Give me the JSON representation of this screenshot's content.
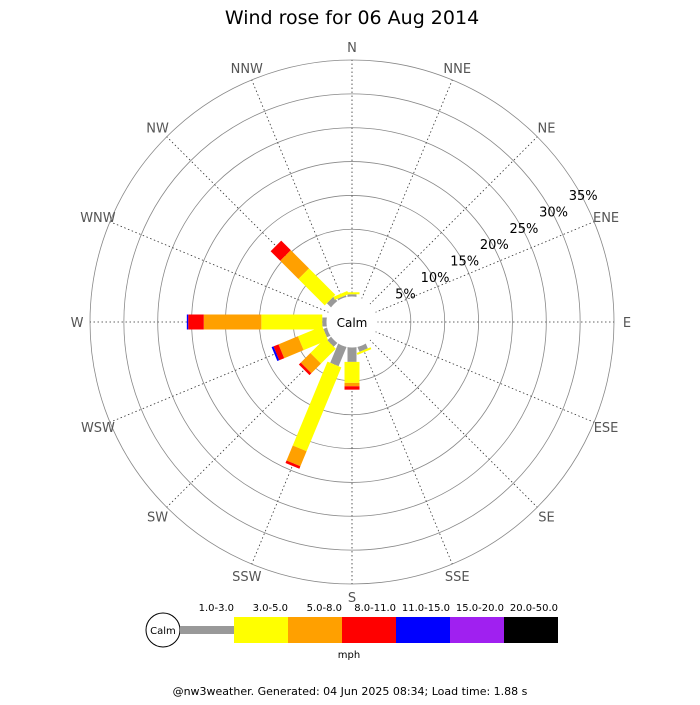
{
  "title": "Wind rose for 06 Aug 2014",
  "footer": "@nw3weather. Generated: 04 Jun 2025 08:34; Load time: 1.88 s",
  "calm_label": "Calm",
  "legend_calm_label": "Calm",
  "units": "mph",
  "colors": [
    "#999999",
    "#ffff00",
    "#ffa000",
    "#ff0000",
    "#0000ff",
    "#a020f0",
    "#000000"
  ],
  "chart_data": {
    "type": "bar",
    "title": "Wind rose for 06 Aug 2014",
    "directions": [
      "N",
      "NNE",
      "NE",
      "ENE",
      "E",
      "ESE",
      "SE",
      "SSE",
      "S",
      "SSW",
      "SW",
      "WSW",
      "W",
      "WNW",
      "NW",
      "NNW"
    ],
    "ring_labels": [
      "5%",
      "10%",
      "15%",
      "20%",
      "25%",
      "30%",
      "35%"
    ],
    "rmax": 35,
    "calm_percent": 4.6,
    "speed_bins": [
      "1.0-3.0",
      "3.0-5.0",
      "5.0-8.0",
      "8.0-11.0",
      "11.0-15.0",
      "15.0-20.0",
      "20.0-50.0"
    ],
    "series": [
      {
        "name": "1.0-3.0",
        "values": [
          0.4,
          0,
          0,
          0,
          0,
          0,
          0,
          0.8,
          2.2,
          3.1,
          0.8,
          0.6,
          0.7,
          0,
          0.9,
          0.3
        ]
      },
      {
        "name": "3.0-5.0",
        "values": [
          0.3,
          0,
          0,
          0,
          0,
          0,
          0,
          0.3,
          3.1,
          13.4,
          3.1,
          3.9,
          9.0,
          0,
          5.5,
          0.5
        ]
      },
      {
        "name": "5.0-8.0",
        "values": [
          0,
          0,
          0,
          0,
          0,
          0,
          0,
          0,
          0.5,
          2.4,
          2.0,
          3.1,
          8.5,
          0,
          3.8,
          0
        ]
      },
      {
        "name": "8.0-11.0",
        "values": [
          0,
          0,
          0,
          0,
          0,
          0,
          0,
          0,
          0.5,
          0.4,
          0.4,
          0.8,
          2.3,
          0,
          2.0,
          0
        ]
      },
      {
        "name": "11.0-15.0",
        "values": [
          0,
          0,
          0,
          0,
          0,
          0,
          0,
          0,
          0,
          0,
          0,
          0.3,
          0.2,
          0,
          0,
          0
        ]
      },
      {
        "name": "15.0-20.0",
        "values": [
          0,
          0,
          0,
          0,
          0,
          0,
          0,
          0,
          0,
          0,
          0,
          0,
          0,
          0,
          0,
          0
        ]
      },
      {
        "name": "20.0-50.0",
        "values": [
          0,
          0,
          0,
          0,
          0,
          0,
          0,
          0,
          0,
          0,
          0,
          0,
          0,
          0,
          0,
          0
        ]
      }
    ]
  }
}
